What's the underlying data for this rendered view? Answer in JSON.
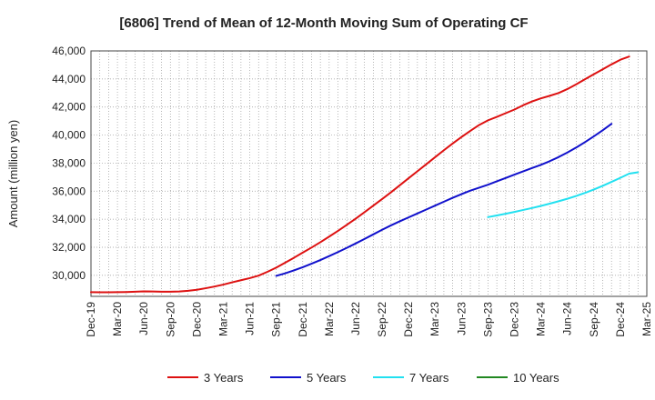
{
  "chart_data": {
    "type": "line",
    "title": "[6806]  Trend of Mean of 12-Month Moving Sum of Operating CF",
    "xlabel": "",
    "ylabel": "Amount (million yen)",
    "ylim": [
      28500,
      46000
    ],
    "yticks": [
      30000,
      32000,
      34000,
      36000,
      38000,
      40000,
      42000,
      44000,
      46000
    ],
    "ytick_labels": [
      "30,000",
      "32,000",
      "34,000",
      "36,000",
      "38,000",
      "40,000",
      "42,000",
      "44,000",
      "46,000"
    ],
    "x_months": [
      "Dec-19",
      "Jan-20",
      "Feb-20",
      "Mar-20",
      "Apr-20",
      "May-20",
      "Jun-20",
      "Jul-20",
      "Aug-20",
      "Sep-20",
      "Oct-20",
      "Nov-20",
      "Dec-20",
      "Jan-21",
      "Feb-21",
      "Mar-21",
      "Apr-21",
      "May-21",
      "Jun-21",
      "Jul-21",
      "Aug-21",
      "Sep-21",
      "Oct-21",
      "Nov-21",
      "Dec-21",
      "Jan-22",
      "Feb-22",
      "Mar-22",
      "Apr-22",
      "May-22",
      "Jun-22",
      "Jul-22",
      "Aug-22",
      "Sep-22",
      "Oct-22",
      "Nov-22",
      "Dec-22",
      "Jan-23",
      "Feb-23",
      "Mar-23",
      "Apr-23",
      "May-23",
      "Jun-23",
      "Jul-23",
      "Aug-23",
      "Sep-23",
      "Oct-23",
      "Nov-23",
      "Dec-23",
      "Jan-24",
      "Feb-24",
      "Mar-24",
      "Apr-24",
      "May-24",
      "Jun-24",
      "Jul-24",
      "Aug-24",
      "Sep-24",
      "Oct-24",
      "Nov-24",
      "Dec-24",
      "Jan-25",
      "Feb-25",
      "Mar-25"
    ],
    "xtick_labels": [
      "Dec-19",
      "Mar-20",
      "Jun-20",
      "Sep-20",
      "Dec-20",
      "Mar-21",
      "Jun-21",
      "Sep-21",
      "Dec-21",
      "Mar-22",
      "Jun-22",
      "Sep-22",
      "Dec-22",
      "Mar-23",
      "Jun-23",
      "Sep-23",
      "Dec-23",
      "Mar-24",
      "Jun-24",
      "Sep-24",
      "Dec-24",
      "Mar-25"
    ],
    "grid": true,
    "legend_position": "bottom",
    "series": [
      {
        "name": "3 Years",
        "color": "#dd1111",
        "start": "Dec-19",
        "values": [
          28800,
          28790,
          28790,
          28800,
          28810,
          28830,
          28860,
          28850,
          28830,
          28830,
          28850,
          28900,
          28970,
          29080,
          29200,
          29340,
          29500,
          29650,
          29800,
          29980,
          30250,
          30550,
          30900,
          31250,
          31620,
          31980,
          32360,
          32760,
          33170,
          33600,
          34040,
          34500,
          34970,
          35440,
          35920,
          36420,
          36920,
          37420,
          37920,
          38420,
          38920,
          39400,
          39860,
          40300,
          40720,
          41050,
          41300,
          41560,
          41820,
          42130,
          42400,
          42620,
          42800,
          43000,
          43280,
          43620,
          43980,
          44340,
          44690,
          45040,
          45370,
          45600
        ]
      },
      {
        "name": "5 Years",
        "color": "#1111cc",
        "start": "Sep-21",
        "values": [
          29960,
          30140,
          30350,
          30580,
          30830,
          31090,
          31370,
          31660,
          31960,
          32270,
          32590,
          32920,
          33250,
          33560,
          33850,
          34130,
          34410,
          34690,
          34970,
          35250,
          35530,
          35790,
          36040,
          36250,
          36460,
          36700,
          36940,
          37180,
          37420,
          37650,
          37880,
          38140,
          38430,
          38760,
          39110,
          39500,
          39910,
          40340,
          40800
        ]
      },
      {
        "name": "7 Years",
        "color": "#22e0f0",
        "start": "Sep-23",
        "values": [
          34150,
          34270,
          34390,
          34520,
          34660,
          34800,
          34950,
          35110,
          35280,
          35460,
          35660,
          35880,
          36120,
          36380,
          36660,
          36950,
          37250,
          37350
        ]
      },
      {
        "name": "10 Years",
        "color": "#228822",
        "start": "Dec-24",
        "values": []
      }
    ]
  }
}
